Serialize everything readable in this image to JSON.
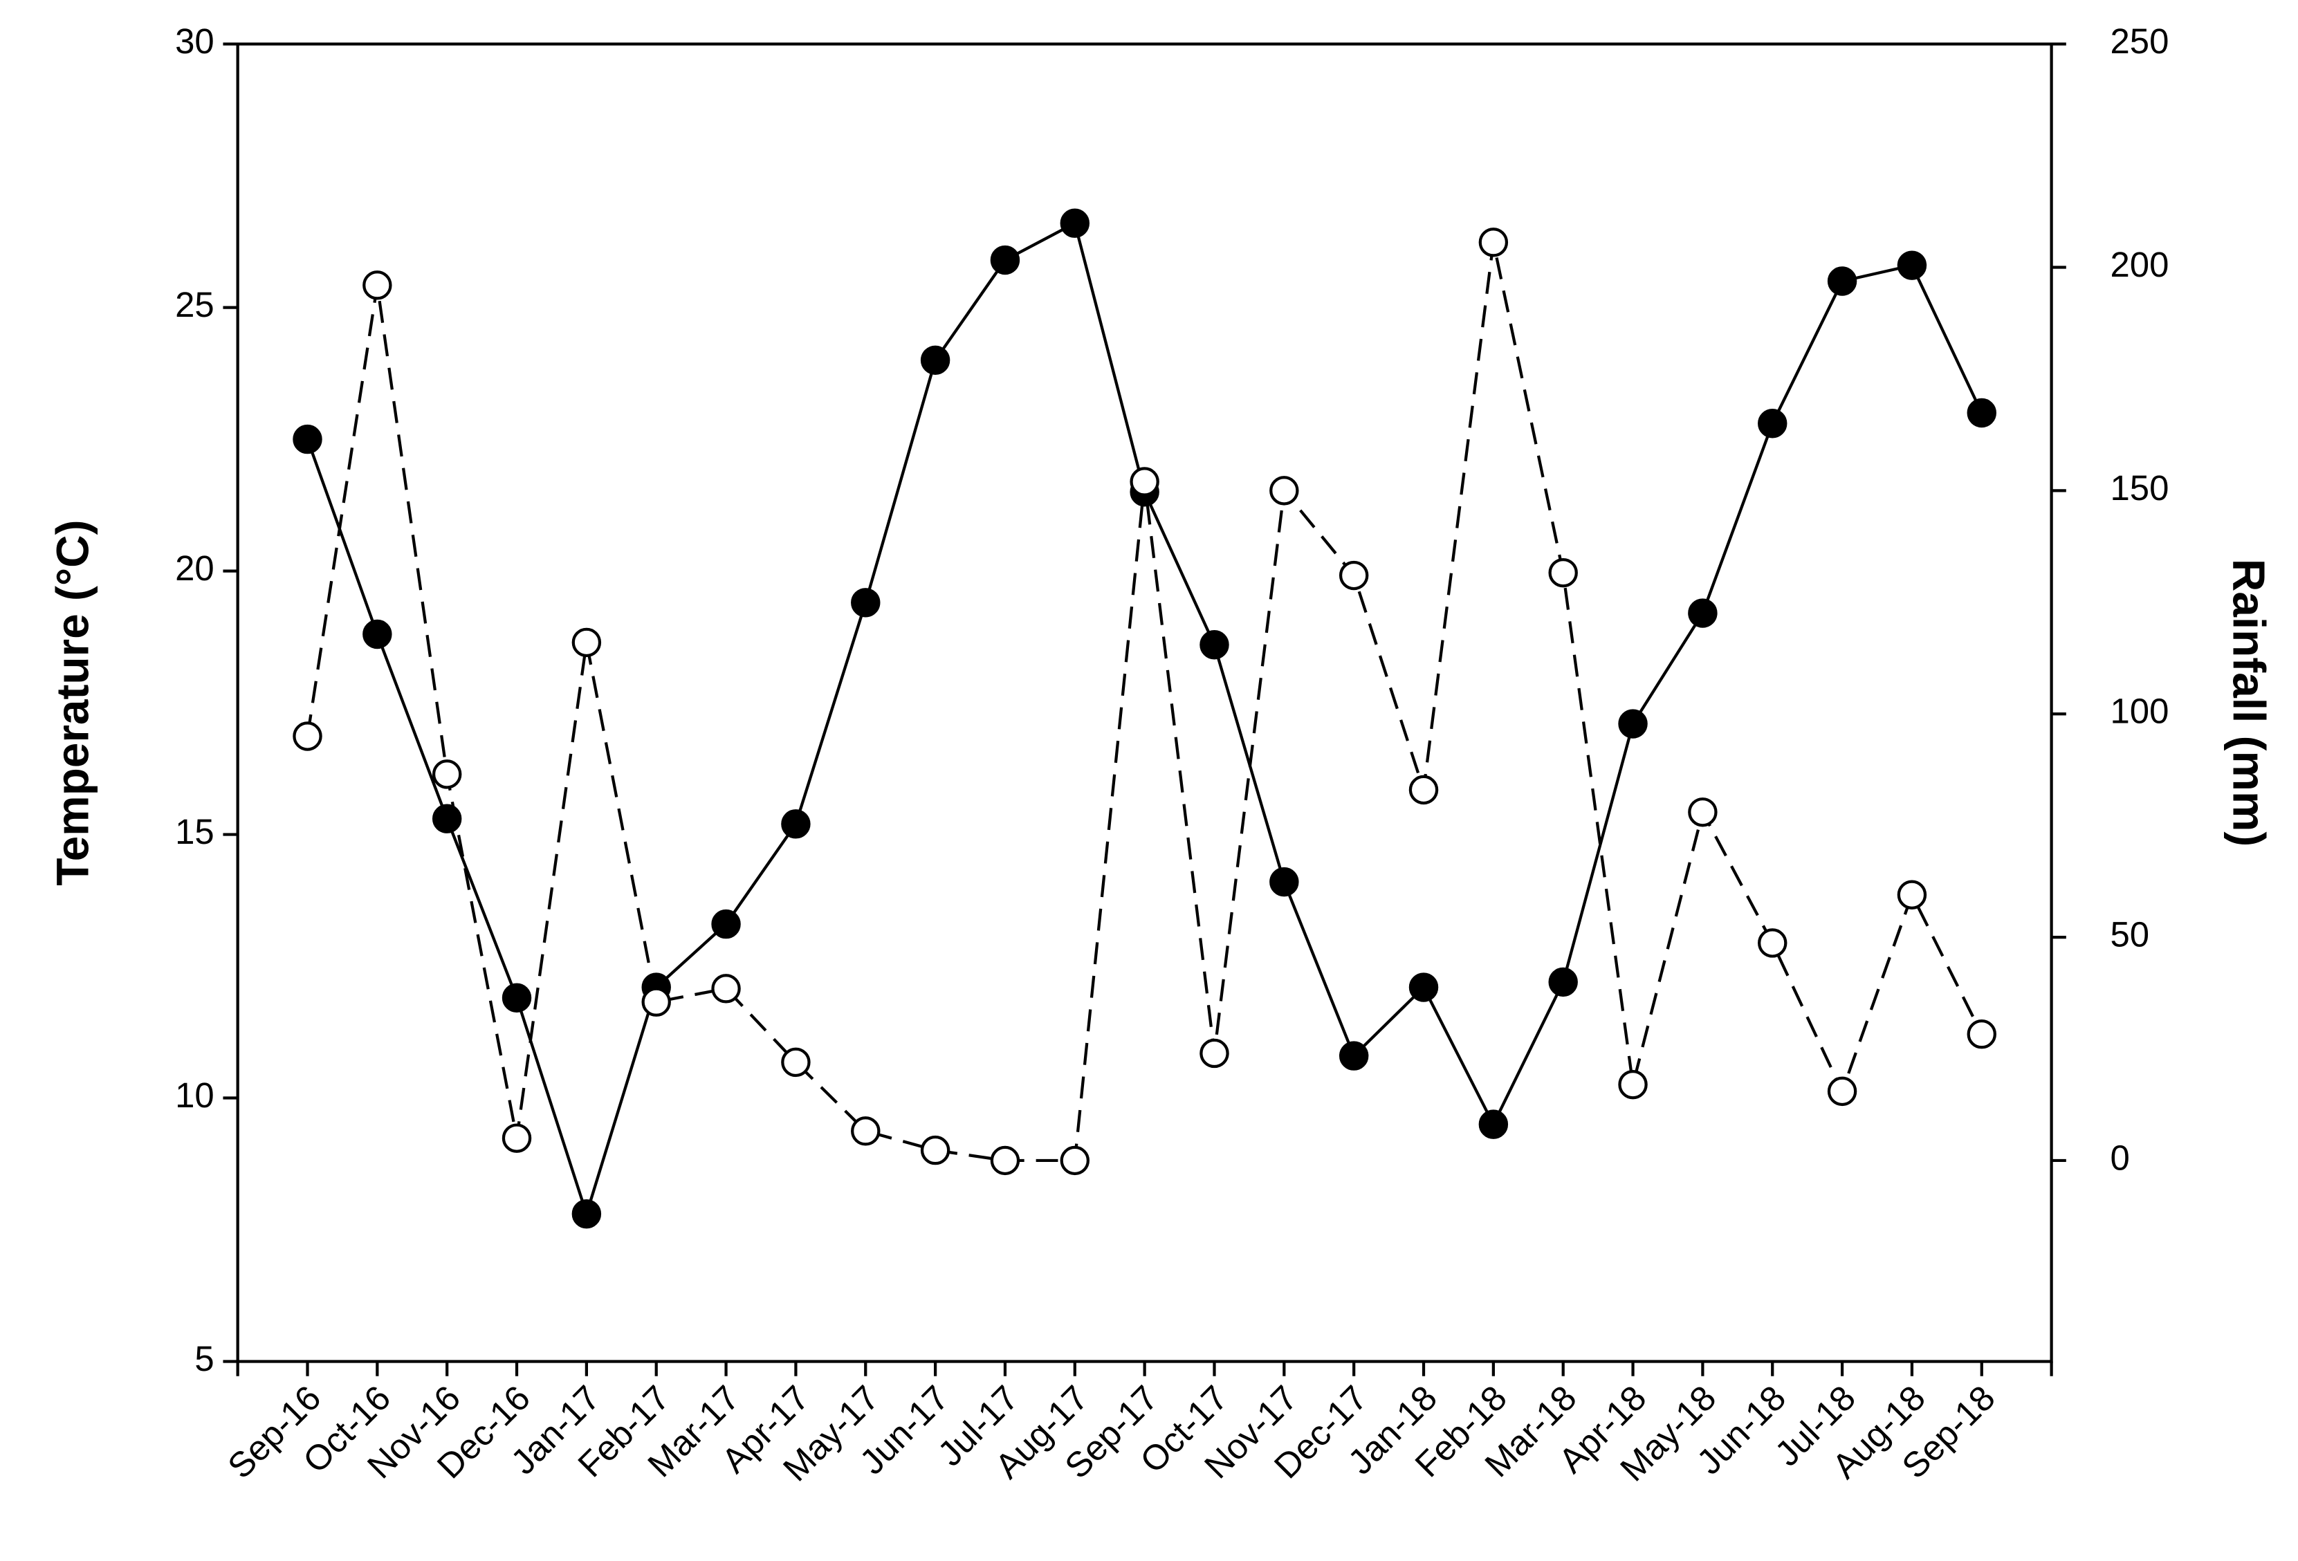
{
  "chart_data": {
    "type": "line",
    "categories": [
      "Sep-16",
      "Oct-16",
      "Nov-16",
      "Dec-16",
      "Jan-17",
      "Feb-17",
      "Mar-17",
      "Apr-17",
      "May-17",
      "Jun-17",
      "Jul-17",
      "Aug-17",
      "Sep-17",
      "Oct-17",
      "Nov-17",
      "Dec-17",
      "Jan-18",
      "Feb-18",
      "Mar-18",
      "Apr-18",
      "May-18",
      "Jun-18",
      "Jul-18",
      "Aug-18",
      "Sep-18"
    ],
    "y_label": "Temperature (°C)",
    "y2_label": "Rainfall (mm)",
    "ylim": [
      5,
      30
    ],
    "yticks": [
      5,
      10,
      15,
      20,
      25,
      30
    ],
    "y2lim": [
      -45,
      250
    ],
    "y2ticks": [
      0,
      50,
      100,
      150,
      200,
      250
    ],
    "series": [
      {
        "name": "Temperature",
        "color": "#000000",
        "marker_fill": "#000000",
        "dashed": false,
        "values": [
          22.5,
          18.8,
          15.3,
          11.9,
          7.8,
          12.1,
          13.3,
          15.2,
          19.4,
          24.0,
          25.9,
          26.6,
          21.5,
          18.6,
          14.1,
          10.8,
          12.1,
          9.5,
          12.2,
          17.1,
          19.2,
          22.8,
          25.5,
          25.8,
          23.0
        ]
      },
      {
        "name": "Rainfall",
        "color": "#000000",
        "marker_fill": "#ffffff",
        "dashed": true,
        "axis": "y2",
        "values": [
          95,
          196,
          86.5,
          5,
          116,
          35.5,
          38.5,
          22,
          6.6,
          2.3,
          0,
          0,
          152,
          24,
          150,
          131,
          83,
          205.6,
          131.6,
          17,
          78,
          48.7,
          15.5,
          59.5,
          28.3
        ]
      }
    ]
  }
}
